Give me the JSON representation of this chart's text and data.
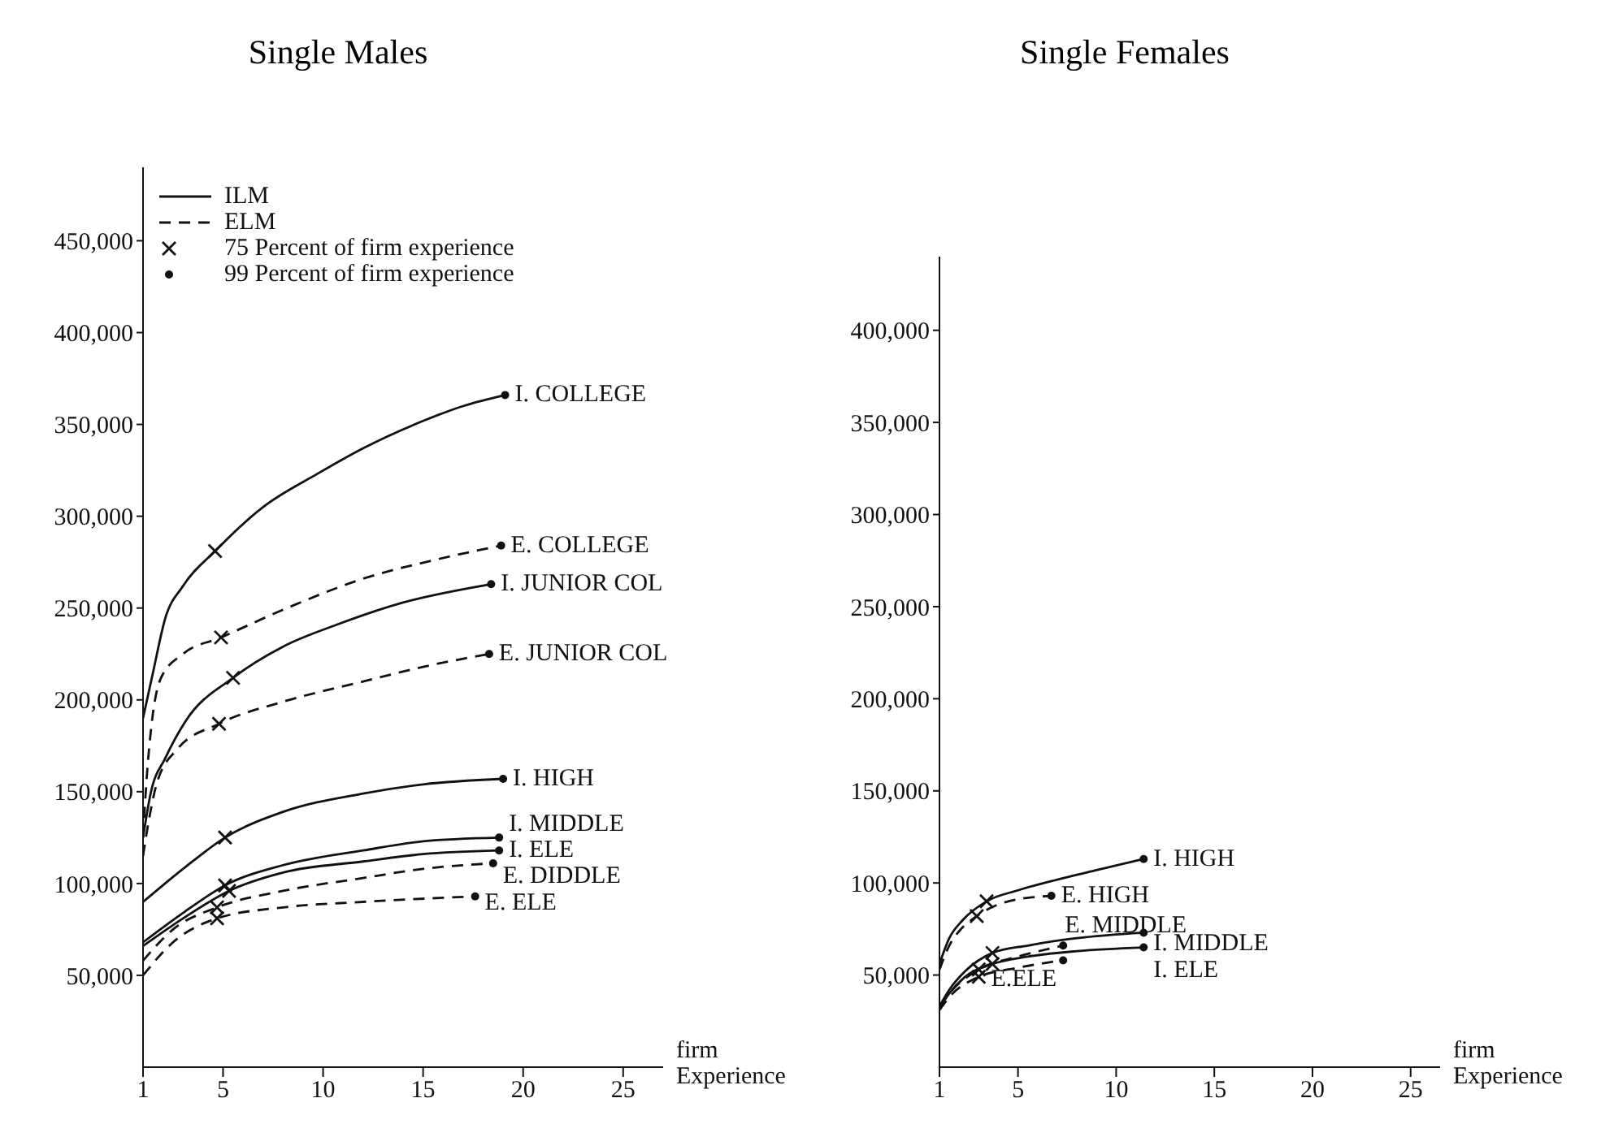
{
  "chart_data": [
    {
      "type": "line",
      "title": "Single Males",
      "xlabel": "firm Experience",
      "xlim": [
        1,
        27
      ],
      "xticks": [
        1,
        5,
        10,
        15,
        20,
        25
      ],
      "ylim": [
        0,
        490000
      ],
      "yticks": [
        {
          "value": 50000,
          "label": "50,000"
        },
        {
          "value": 100000,
          "label": "100,000"
        },
        {
          "value": 150000,
          "label": "150,000"
        },
        {
          "value": 200000,
          "label": "200,000"
        },
        {
          "value": 250000,
          "label": "250,000"
        },
        {
          "value": 300000,
          "label": "300,000"
        },
        {
          "value": 350000,
          "label": "350,000"
        },
        {
          "value": 400000,
          "label": "400,000"
        },
        {
          "value": 450000,
          "label": "450,000"
        }
      ],
      "legend": "top left",
      "annotations": [
        "ILM",
        "ELM"
      ],
      "series": [
        {
          "name": "I. COLLEGE",
          "color": "#111111",
          "line_style": "solid",
          "x": [
            1,
            1.5,
            2.1,
            3,
            4.6,
            7,
            9.7,
            12,
            14.8,
            17,
            19.1
          ],
          "values": [
            190000,
            215000,
            244000,
            262000,
            281000,
            305000,
            323000,
            337000,
            351000,
            360000,
            366000
          ]
        },
        {
          "name": "E. COLLEGE",
          "color": "#111111",
          "line_style": "dashed",
          "x": [
            1,
            1.2,
            1.4,
            1.9,
            3,
            4.9,
            8.2,
            12,
            15.5,
            18.9
          ],
          "values": [
            125000,
            160000,
            184000,
            212000,
            225000,
            234000,
            250000,
            266000,
            276000,
            284000
          ]
        },
        {
          "name": "I. JUNIOR COL",
          "color": "#111111",
          "line_style": "solid",
          "x": [
            1,
            1.4,
            2.1,
            3.1,
            5.5,
            8,
            10.7,
            14,
            18.4
          ],
          "values": [
            125000,
            150000,
            168000,
            188000,
            212000,
            229000,
            241000,
            253000,
            263000
          ]
        },
        {
          "name": "E. JUNIOR COL",
          "color": "#111111",
          "line_style": "dashed",
          "x": [
            1,
            1.3,
            1.7,
            2.7,
            4.8,
            8,
            12,
            15,
            18.3
          ],
          "values": [
            115000,
            135000,
            155000,
            173000,
            187000,
            199000,
            210000,
            218000,
            225000
          ]
        },
        {
          "name": "I. HIGH",
          "color": "#111111",
          "line_style": "solid",
          "x": [
            1,
            3,
            5.1,
            8,
            12,
            15,
            19
          ],
          "values": [
            90000,
            108000,
            125000,
            139000,
            149000,
            154000,
            157000
          ]
        },
        {
          "name": "I. MIDDLE",
          "color": "#111111",
          "line_style": "solid",
          "x": [
            1,
            3,
            5.1,
            8,
            12,
            15,
            18.8
          ],
          "values": [
            68000,
            84000,
            99000,
            110000,
            118000,
            123000,
            125000
          ]
        },
        {
          "name": "I. ELE",
          "color": "#111111",
          "line_style": "solid",
          "x": [
            1,
            3,
            5.3,
            8,
            12,
            15,
            18.8
          ],
          "values": [
            66000,
            81000,
            96000,
            106000,
            112000,
            116000,
            118000
          ]
        },
        {
          "name": "E. DIDDLE",
          "color": "#111111",
          "line_style": "dashed",
          "x": [
            1,
            2.5,
            4.7,
            8,
            12,
            15,
            18.5
          ],
          "values": [
            58000,
            75000,
            87000,
            96000,
            103000,
            108000,
            111000
          ]
        },
        {
          "name": "E. ELE",
          "color": "#111111",
          "line_style": "dashed",
          "x": [
            1,
            2.5,
            4.7,
            8,
            12,
            17.6
          ],
          "values": [
            50000,
            68000,
            81000,
            87000,
            90000,
            93000
          ]
        },
        {
          "type": "scatter",
          "name": "75 Percent of firm experience",
          "color": "#111111",
          "marker": "cross",
          "x": [
            4.6,
            4.9,
            5.5,
            4.8,
            5.1,
            5.1,
            5.3,
            4.7,
            4.7
          ],
          "values": [
            281000,
            234000,
            212000,
            187000,
            125000,
            99000,
            96000,
            87000,
            81000
          ]
        },
        {
          "type": "scatter",
          "name": "99 Percent of firm experience",
          "color": "#111111",
          "marker": "circle",
          "x": [
            19.1,
            18.9,
            18.4,
            18.3,
            19,
            18.8,
            18.8,
            18.5,
            17.6
          ],
          "values": [
            366000,
            284000,
            263000,
            225000,
            157000,
            125000,
            118000,
            111000,
            93000
          ]
        }
      ]
    },
    {
      "type": "line",
      "title": "Single Females",
      "xlabel": "firm Experience",
      "xlim": [
        1,
        26.5
      ],
      "xticks": [
        1,
        5,
        10,
        15,
        20,
        25
      ],
      "ylim": [
        0,
        440000
      ],
      "yticks": [
        {
          "value": 50000,
          "label": "50,000"
        },
        {
          "value": 100000,
          "label": "100,000"
        },
        {
          "value": 150000,
          "label": "150,000"
        },
        {
          "value": 200000,
          "label": "200,000"
        },
        {
          "value": 250000,
          "label": "250,000"
        },
        {
          "value": 300000,
          "label": "300,000"
        },
        {
          "value": 350000,
          "label": "350,000"
        },
        {
          "value": 400000,
          "label": "400,000"
        }
      ],
      "series": [
        {
          "name": "I. HIGH",
          "color": "#111111",
          "line_style": "solid",
          "x": [
            1,
            1.5,
            2.2,
            3.4,
            5,
            6.7,
            9,
            11.4
          ],
          "values": [
            56000,
            70000,
            80000,
            90000,
            96000,
            101000,
            107000,
            113000
          ]
        },
        {
          "name": "E. HIGH",
          "color": "#111111",
          "line_style": "dashed",
          "x": [
            1,
            1.5,
            2.1,
            2.9,
            4.5,
            6.7
          ],
          "values": [
            53000,
            66000,
            75000,
            82000,
            90000,
            93000
          ]
        },
        {
          "name": "I. MIDDLE",
          "color": "#111111",
          "line_style": "solid",
          "x": [
            1,
            1.5,
            2.3,
            3.7,
            5.5,
            8,
            11.4
          ],
          "values": [
            33000,
            42000,
            52000,
            62000,
            66000,
            70000,
            73000
          ]
        },
        {
          "name": "I. ELE",
          "color": "#111111",
          "line_style": "solid",
          "x": [
            1,
            1.5,
            2.3,
            3.7,
            5.5,
            8,
            11.4
          ],
          "values": [
            32000,
            40000,
            49000,
            56000,
            60000,
            63000,
            65000
          ]
        },
        {
          "name": "E. MIDDLE",
          "color": "#111111",
          "line_style": "dashed",
          "x": [
            1,
            1.5,
            3,
            5,
            7.3
          ],
          "values": [
            33000,
            40000,
            53000,
            60000,
            66000
          ]
        },
        {
          "name": "E.ELE",
          "color": "#111111",
          "line_style": "dashed",
          "x": [
            1,
            1.5,
            3,
            5,
            7.3
          ],
          "values": [
            31000,
            38000,
            49000,
            54000,
            58000
          ]
        },
        {
          "type": "scatter",
          "color": "#111111",
          "marker": "cross",
          "x": [
            3.4,
            2.9,
            3.7,
            3.7,
            3,
            3
          ],
          "values": [
            90000,
            82000,
            62000,
            56000,
            53000,
            49000
          ]
        },
        {
          "type": "scatter",
          "color": "#111111",
          "marker": "circle",
          "x": [
            11.4,
            6.7,
            11.4,
            11.4,
            7.3,
            7.3
          ],
          "values": [
            113000,
            93000,
            73000,
            65000,
            66000,
            58000
          ]
        }
      ]
    }
  ]
}
